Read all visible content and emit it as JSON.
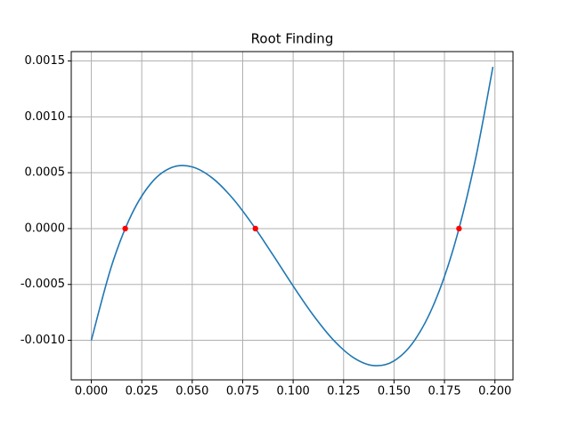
{
  "chart_data": {
    "type": "line",
    "title": "Root Finding",
    "x": [
      0,
      0.01,
      0.02,
      0.03,
      0.04,
      0.05,
      0.06,
      0.07,
      0.08,
      0.09,
      0.1,
      0.11,
      0.12,
      0.13,
      0.14,
      0.15,
      0.16,
      0.17,
      0.18,
      0.19,
      0.199
    ],
    "series": [
      {
        "color": "#1f77b4",
        "values": [
          -0.001,
          -0.0003355,
          0.0001279,
          0.0004142,
          0.0005475,
          0.000552,
          0.0004519,
          0.0002711,
          3.38e-05,
          -0.0002359,
          -0.0005139,
          -0.000776,
          -0.0009982,
          -0.0011564,
          -0.0012264,
          -0.001184,
          -0.0010054,
          -0.0006662,
          -0.0001424,
          0.0005901,
          0.0014476
        ]
      }
    ],
    "roots": {
      "type": "scatter",
      "color": "#ff0000",
      "x": [
        0.0168,
        0.0813,
        0.1822
      ],
      "values": [
        0,
        0,
        0
      ]
    },
    "xlim": [
      -0.00995,
      0.20895
    ],
    "ylim": [
      -0.001354,
      0.001584
    ],
    "xticks": [
      {
        "value": 0,
        "label": "0.000"
      },
      {
        "value": 0.025,
        "label": "0.025"
      },
      {
        "value": 0.05,
        "label": "0.050"
      },
      {
        "value": 0.075,
        "label": "0.075"
      },
      {
        "value": 0.1,
        "label": "0.100"
      },
      {
        "value": 0.125,
        "label": "0.125"
      },
      {
        "value": 0.15,
        "label": "0.150"
      },
      {
        "value": 0.175,
        "label": "0.175"
      },
      {
        "value": 0.2,
        "label": "0.200"
      }
    ],
    "yticks": [
      {
        "value": -0.001,
        "label": "-0.0010"
      },
      {
        "value": -0.0005,
        "label": "-0.0005"
      },
      {
        "value": 0,
        "label": "0.0000"
      },
      {
        "value": 0.0005,
        "label": "0.0005"
      },
      {
        "value": 0.001,
        "label": "0.0010"
      },
      {
        "value": 0.0015,
        "label": "0.0015"
      }
    ],
    "grid": true
  }
}
